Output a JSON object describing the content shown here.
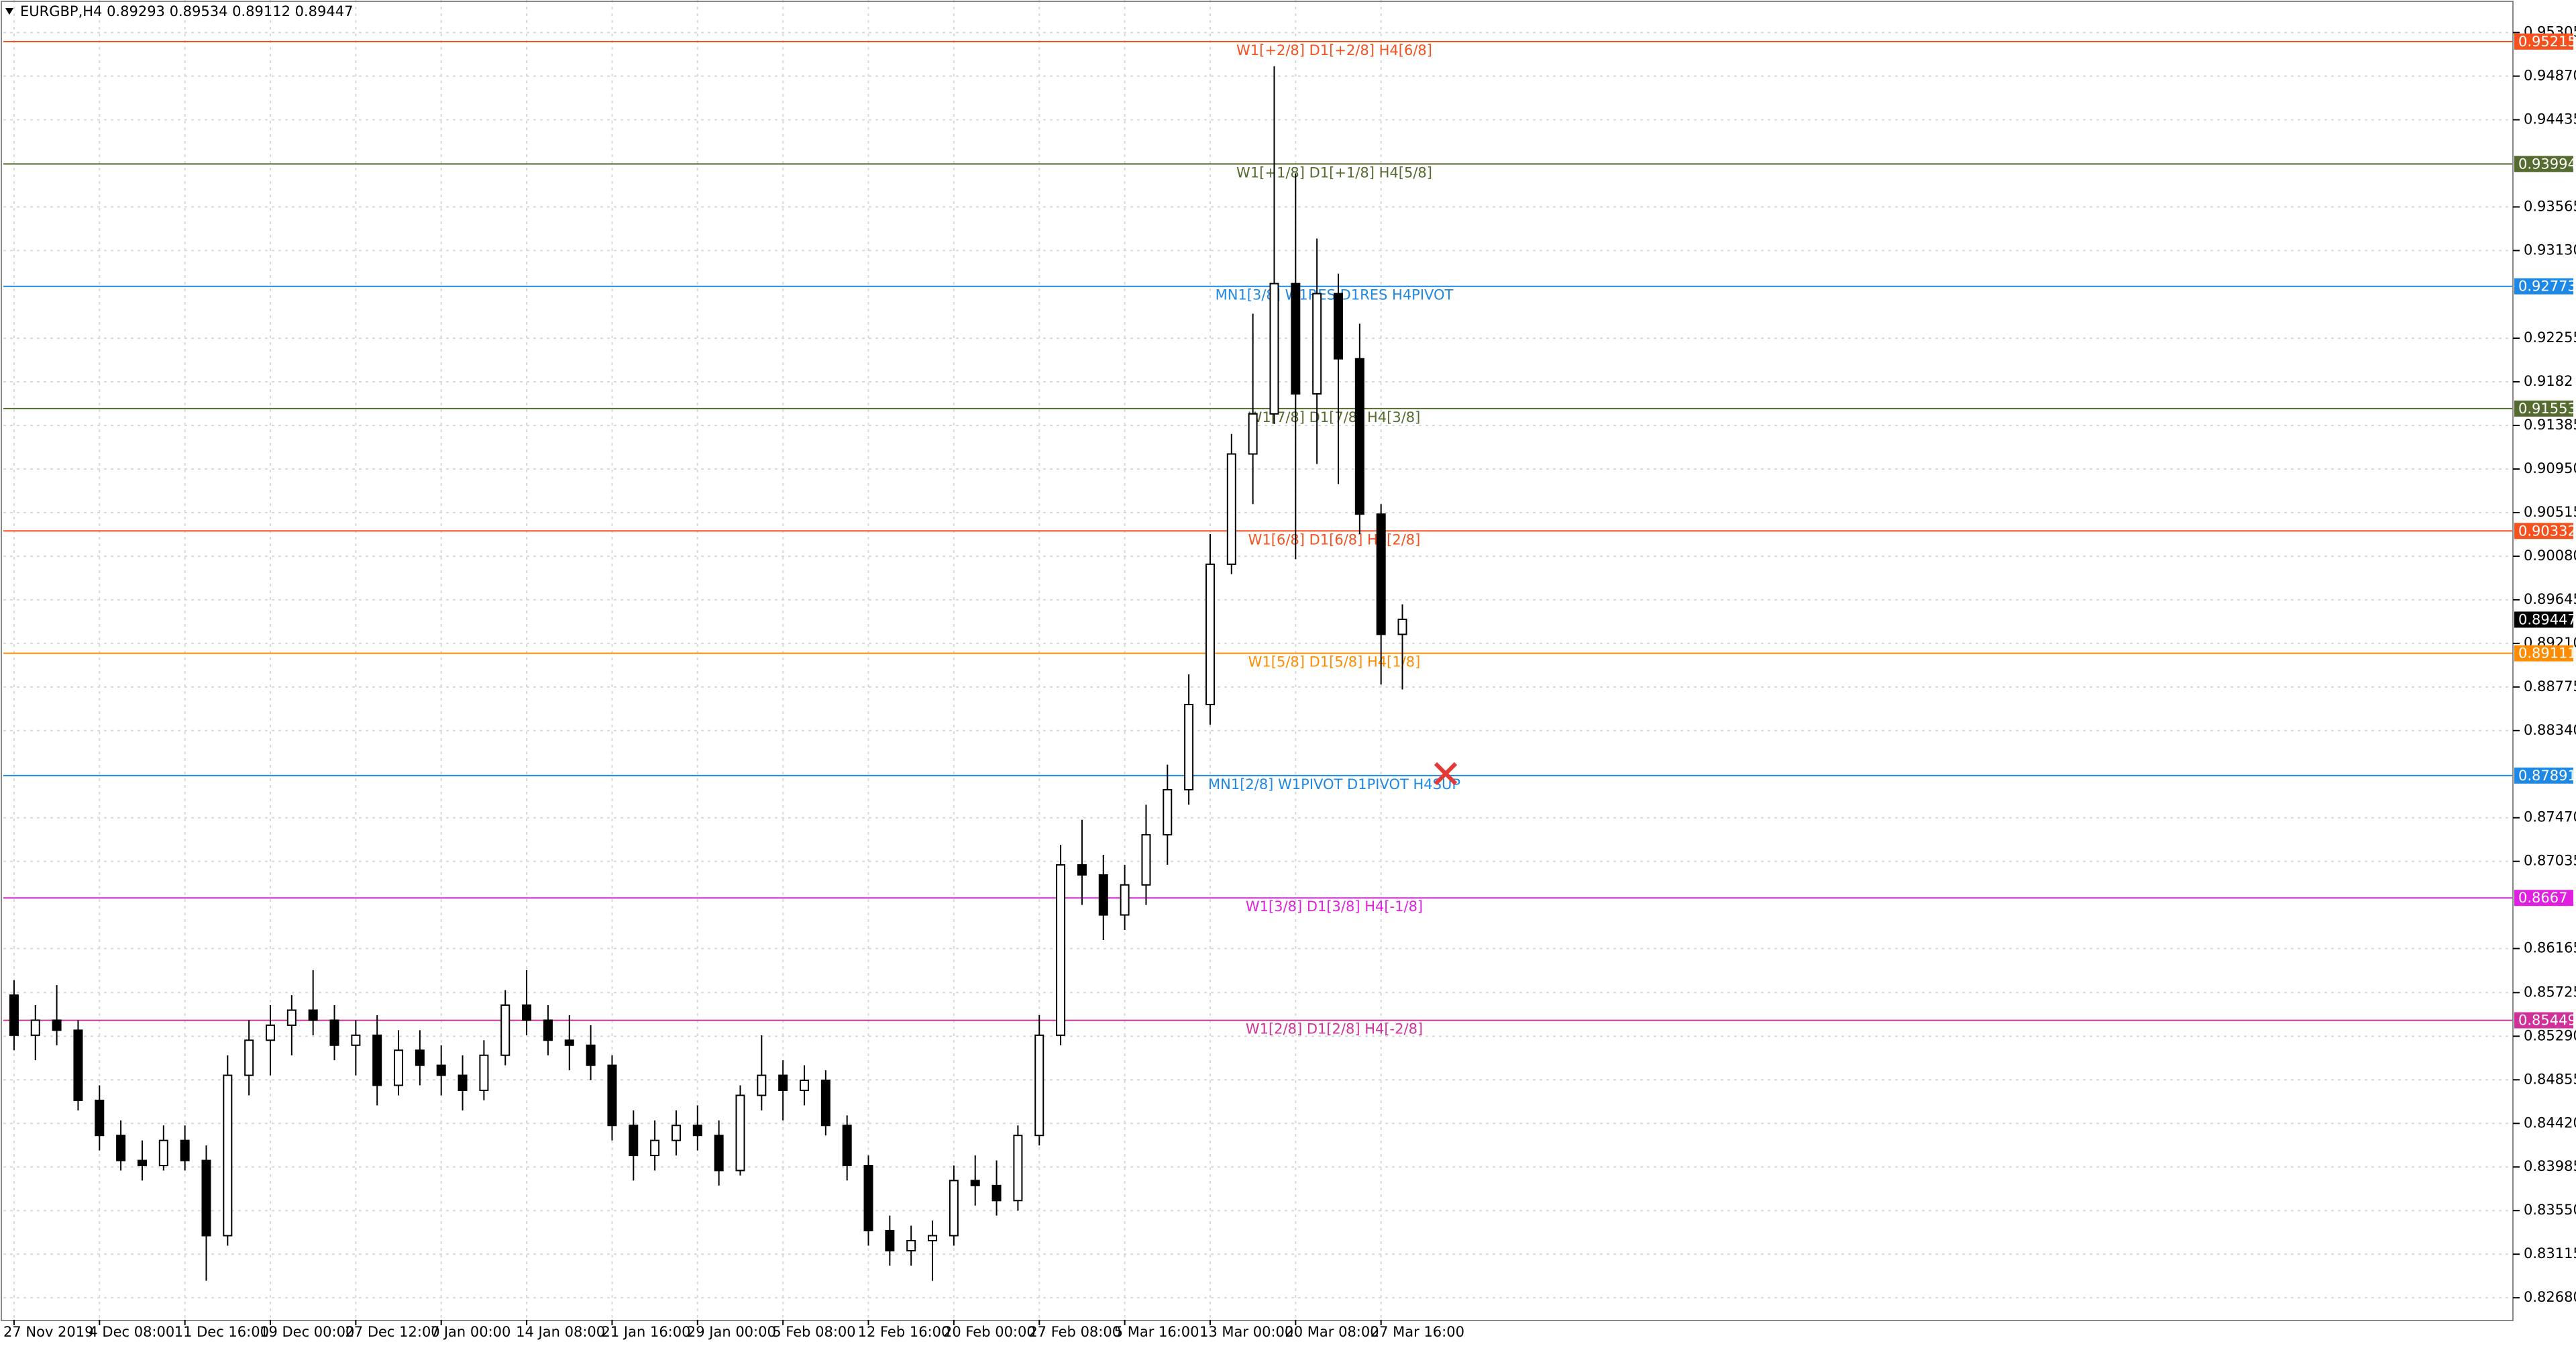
{
  "chart_data": {
    "type": "candlestick",
    "title": "EURGBP,H4  0.89293 0.89534 0.89112 0.89447",
    "categories": [
      "27 Nov 2019",
      null,
      null,
      null,
      "4 Dec 08:00",
      null,
      null,
      null,
      "11 Dec 16:00",
      null,
      null,
      null,
      "19 Dec 00:00",
      null,
      null,
      null,
      "27 Dec 12:00",
      null,
      null,
      null,
      "7 Jan 00:00",
      null,
      null,
      null,
      "14 Jan 08:00",
      null,
      null,
      null,
      "21 Jan 16:00",
      null,
      null,
      null,
      "29 Jan 00:00",
      null,
      null,
      null,
      "5 Feb 08:00",
      null,
      null,
      null,
      "12 Feb 16:00",
      null,
      null,
      null,
      "20 Feb 00:00",
      null,
      null,
      null,
      "27 Feb 08:00",
      null,
      null,
      null,
      "5 Mar 16:00",
      null,
      null,
      null,
      "13 Mar 00:00",
      null,
      null,
      null,
      "20 Mar 08:00",
      null,
      null,
      null,
      "27 Mar 16:00",
      null
    ],
    "open": [
      0.857,
      0.853,
      0.8545,
      0.8535,
      0.8465,
      0.843,
      0.8405,
      0.84,
      0.8425,
      0.8405,
      0.833,
      0.849,
      0.8525,
      0.854,
      0.8555,
      0.8545,
      0.852,
      0.853,
      0.848,
      0.8515,
      0.85,
      0.849,
      0.8475,
      0.851,
      0.856,
      0.8545,
      0.8525,
      0.852,
      0.85,
      0.844,
      0.841,
      0.8425,
      0.844,
      0.843,
      0.8395,
      0.847,
      0.849,
      0.8475,
      0.8485,
      0.844,
      0.84,
      0.8335,
      0.8315,
      0.8325,
      0.833,
      0.8385,
      0.838,
      0.8365,
      0.843,
      0.853,
      0.87,
      0.869,
      0.865,
      0.868,
      0.873,
      0.8775,
      0.886,
      0.9,
      0.911,
      0.915,
      0.928,
      0.917,
      0.927,
      0.9205,
      0.905,
      0.893
    ],
    "high": [
      0.8585,
      0.856,
      0.858,
      0.8545,
      0.848,
      0.8445,
      0.8425,
      0.844,
      0.844,
      0.842,
      0.851,
      0.8545,
      0.856,
      0.857,
      0.8595,
      0.856,
      0.8545,
      0.855,
      0.8535,
      0.8535,
      0.852,
      0.851,
      0.8525,
      0.8575,
      0.8595,
      0.856,
      0.855,
      0.854,
      0.851,
      0.8455,
      0.8445,
      0.8455,
      0.846,
      0.8445,
      0.848,
      0.853,
      0.8505,
      0.85,
      0.8495,
      0.845,
      0.841,
      0.835,
      0.834,
      0.8345,
      0.84,
      0.841,
      0.8405,
      0.844,
      0.855,
      0.872,
      0.8745,
      0.871,
      0.87,
      0.876,
      0.88,
      0.889,
      0.903,
      0.913,
      0.925,
      0.9497,
      0.939,
      0.9325,
      0.929,
      0.924,
      0.906,
      0.896
    ],
    "low": [
      0.8515,
      0.8505,
      0.852,
      0.8455,
      0.8415,
      0.8395,
      0.8385,
      0.8395,
      0.8395,
      0.8285,
      0.832,
      0.847,
      0.849,
      0.851,
      0.853,
      0.8505,
      0.849,
      0.846,
      0.847,
      0.848,
      0.847,
      0.8455,
      0.8465,
      0.85,
      0.853,
      0.851,
      0.8495,
      0.8485,
      0.8425,
      0.8385,
      0.8395,
      0.841,
      0.8415,
      0.838,
      0.839,
      0.8455,
      0.8445,
      0.846,
      0.843,
      0.8385,
      0.832,
      0.83,
      0.83,
      0.8285,
      0.832,
      0.836,
      0.835,
      0.8355,
      0.842,
      0.852,
      0.866,
      0.8625,
      0.8635,
      0.866,
      0.87,
      0.876,
      0.884,
      0.899,
      0.906,
      0.914,
      0.9005,
      0.91,
      0.908,
      0.903,
      0.888,
      0.8875
    ],
    "close": [
      0.853,
      0.8545,
      0.8535,
      0.8465,
      0.843,
      0.8405,
      0.84,
      0.8425,
      0.8405,
      0.833,
      0.849,
      0.8525,
      0.854,
      0.8555,
      0.8545,
      0.852,
      0.853,
      0.848,
      0.8515,
      0.85,
      0.849,
      0.8475,
      0.851,
      0.856,
      0.8545,
      0.8525,
      0.852,
      0.85,
      0.844,
      0.841,
      0.8425,
      0.844,
      0.843,
      0.8395,
      0.847,
      0.849,
      0.8475,
      0.8485,
      0.844,
      0.84,
      0.8335,
      0.8315,
      0.8325,
      0.833,
      0.8385,
      0.838,
      0.8365,
      0.843,
      0.853,
      0.87,
      0.869,
      0.865,
      0.868,
      0.873,
      0.8775,
      0.886,
      0.9,
      0.911,
      0.915,
      0.928,
      0.917,
      0.927,
      0.9205,
      0.905,
      0.893,
      0.8945
    ],
    "ylim": [
      0.8246,
      0.9563
    ],
    "yticks": [
      0.95305,
      {
        "value": 0.9487,
        "label": "0.94870"
      },
      0.94435,
      0.93565,
      {
        "value": 0.9313,
        "label": "0.93130"
      },
      0.92255,
      0.9182,
      0.91385,
      {
        "value": 0.9095,
        "label": "0.90950"
      },
      0.90515,
      {
        "value": 0.9008,
        "label": "0.90080"
      },
      0.89645,
      {
        "value": 0.8921,
        "label": "0.89210"
      },
      0.88775,
      {
        "value": 0.8834,
        "label": "0.88340"
      },
      {
        "value": 0.8747,
        "label": "0.87470"
      },
      0.87035,
      0.86165,
      0.85725,
      {
        "value": 0.8529,
        "label": "0.85290"
      },
      0.84855,
      {
        "value": 0.8442,
        "label": "0.84420"
      },
      0.83985,
      {
        "value": 0.8355,
        "label": "0.83550"
      },
      0.83115,
      {
        "value": 0.8268,
        "label": "0.82680"
      }
    ],
    "grid": true,
    "levels": [
      {
        "price": 0.95215,
        "label": "W1[+2/8] D1[+2/8] H4[6/8]",
        "color": "#f4511e"
      },
      {
        "price": 0.93994,
        "label": "W1[+1/8] D1[+1/8] H4[5/8]",
        "color": "#556b2f"
      },
      {
        "price": 0.92773,
        "label": "MN1[3/8] W1RES D1RES H4PIVOT",
        "color": "#1e88e5"
      },
      {
        "price": 0.91553,
        "label": "W1[7/8] D1[7/8] H4[3/8]",
        "color": "#556b2f"
      },
      {
        "price": 0.90332,
        "label": "W1[6/8] D1[6/8] H4[2/8]",
        "color": "#f4511e"
      },
      {
        "price": 0.89111,
        "label": "W1[5/8] D1[5/8] H4[1/8]",
        "color": "#ff8c00"
      },
      {
        "price": 0.87891,
        "label": "MN1[2/8] W1PIVOT D1PIVOT H4SUP",
        "color": "#1e88e5"
      },
      {
        "price": 0.8667,
        "label": "W1[3/8] D1[3/8] H4[-1/8]",
        "color": "#e020e0"
      },
      {
        "price": 0.85449,
        "label": "W1[2/8] D1[2/8] H4[-2/8]",
        "color": "#d0309a"
      }
    ],
    "current_price": 0.89447
  }
}
